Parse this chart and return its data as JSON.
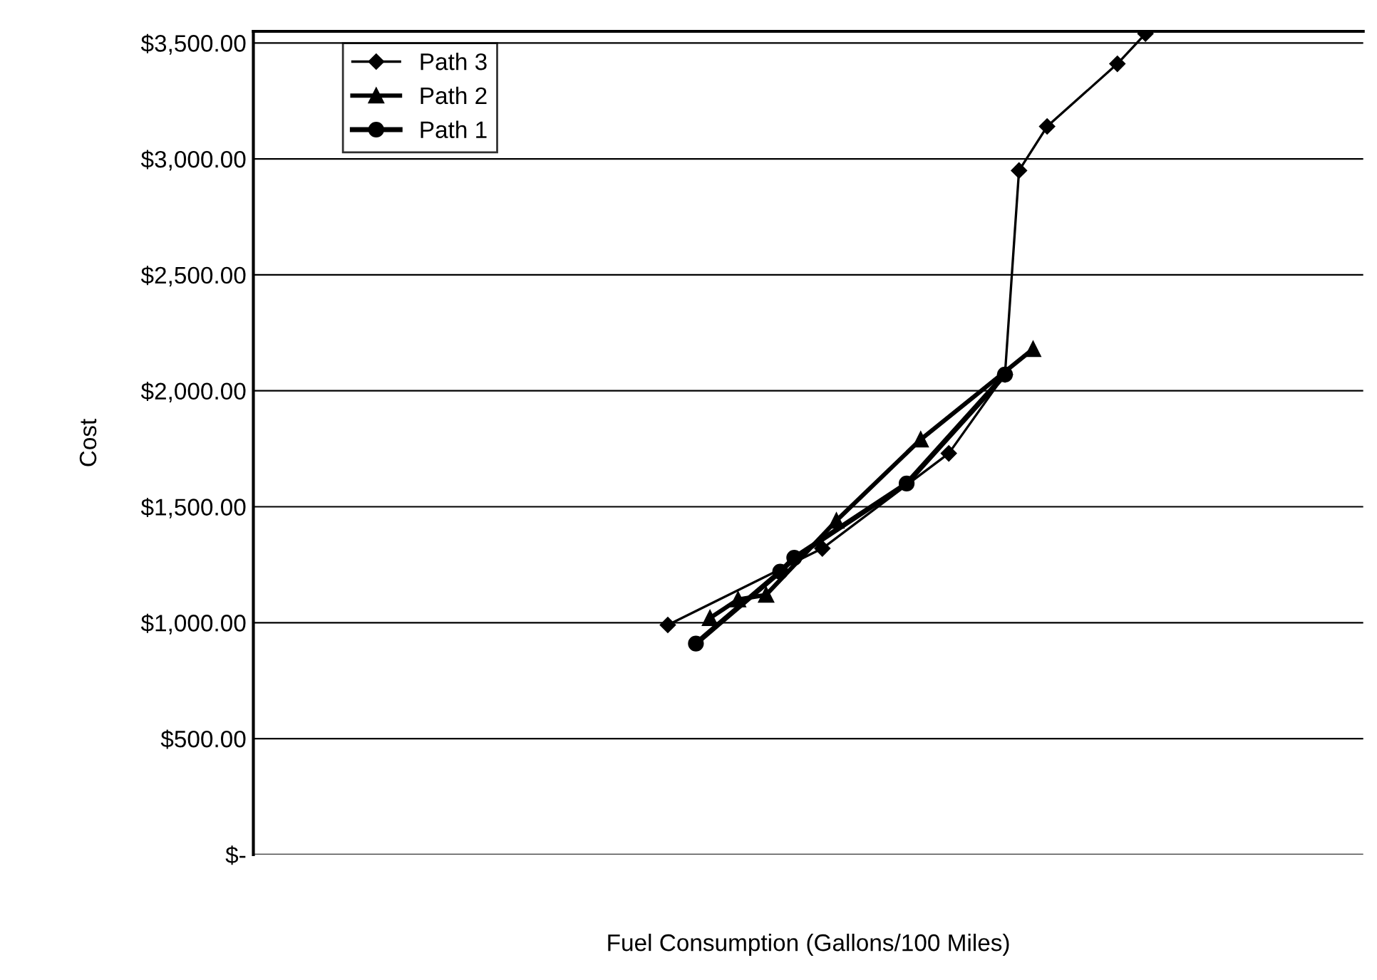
{
  "chart_data": {
    "type": "line",
    "xlabel": "Fuel Consumption (Gallons/100 Miles)",
    "ylabel": "Cost",
    "categories": [
      null,
      null,
      null,
      null,
      null,
      null,
      null,
      null,
      null,
      null,
      null,
      null,
      null,
      null,
      null,
      null,
      null,
      null,
      null,
      null,
      null,
      null,
      null,
      null,
      null,
      null,
      null,
      null,
      null,
      null,
      null,
      null,
      null,
      null,
      null,
      null,
      null,
      null,
      null,
      null,
      null,
      null,
      null,
      null,
      null,
      null,
      null,
      null,
      null,
      null,
      null,
      null,
      null,
      null,
      null,
      null,
      null,
      null,
      null,
      null,
      null,
      null,
      null,
      null,
      null,
      null,
      null,
      null,
      null,
      null,
      null,
      null,
      null,
      null,
      null,
      null,
      null,
      null,
      null
    ],
    "series": [
      {
        "name": "Path 3",
        "color": "#000000",
        "marker": "diamond",
        "values": [
          null,
          null,
          null,
          null,
          null,
          null,
          null,
          null,
          null,
          null,
          null,
          null,
          null,
          null,
          null,
          null,
          null,
          null,
          null,
          null,
          null,
          null,
          null,
          null,
          null,
          null,
          null,
          null,
          null,
          990,
          null,
          null,
          null,
          null,
          null,
          null,
          null,
          null,
          null,
          null,
          1320,
          null,
          null,
          null,
          null,
          null,
          null,
          null,
          null,
          1730,
          null,
          null,
          null,
          2070,
          2950,
          null,
          3140,
          null,
          null,
          null,
          null,
          3410,
          null,
          3540,
          null,
          null,
          null,
          null,
          null,
          null,
          null,
          null,
          null,
          null,
          null,
          null,
          null,
          null,
          null
        ]
      },
      {
        "name": "Path 2",
        "color": "#000000",
        "marker": "triangle",
        "values": [
          null,
          null,
          null,
          null,
          null,
          null,
          null,
          null,
          null,
          null,
          null,
          null,
          null,
          null,
          null,
          null,
          null,
          null,
          null,
          null,
          null,
          null,
          null,
          null,
          null,
          null,
          null,
          null,
          null,
          null,
          null,
          null,
          1020,
          null,
          1100,
          null,
          1120,
          null,
          null,
          null,
          null,
          1440,
          null,
          null,
          null,
          null,
          null,
          1790,
          null,
          null,
          null,
          null,
          null,
          null,
          null,
          2180,
          null,
          null,
          null,
          null,
          null,
          null,
          null,
          null,
          null,
          null,
          null,
          null,
          null,
          null,
          null,
          null,
          null,
          null,
          null,
          null,
          null,
          null,
          null
        ]
      },
      {
        "name": "Path 1",
        "color": "#000000",
        "marker": "circle",
        "values": [
          null,
          null,
          null,
          null,
          null,
          null,
          null,
          null,
          null,
          null,
          null,
          null,
          null,
          null,
          null,
          null,
          null,
          null,
          null,
          null,
          null,
          null,
          null,
          null,
          null,
          null,
          null,
          null,
          null,
          null,
          null,
          910,
          null,
          null,
          null,
          null,
          null,
          1220,
          1280,
          null,
          null,
          null,
          null,
          null,
          null,
          null,
          1600,
          null,
          null,
          null,
          null,
          null,
          null,
          2070,
          null,
          null,
          null,
          null,
          null,
          null,
          null,
          null,
          null,
          null,
          null,
          null,
          null,
          null,
          null,
          null,
          null,
          null,
          null,
          null,
          null,
          null,
          null,
          null,
          null
        ]
      }
    ],
    "ylim": [
      0,
      3550
    ],
    "yticks": [
      {
        "value": 0,
        "label": "$-"
      },
      {
        "value": 500,
        "label": "$500.00"
      },
      {
        "value": 1000,
        "label": "$1,000.00"
      },
      {
        "value": 1500,
        "label": "$1,500.00"
      },
      {
        "value": 2000,
        "label": "$2,000.00"
      },
      {
        "value": 2500,
        "label": "$2,500.00"
      },
      {
        "value": 3000,
        "label": "$3,000.00"
      },
      {
        "value": 3500,
        "label": "$3,500.00"
      }
    ],
    "grid": "y",
    "legend": "top left",
    "tick_labels": "y",
    "line_style": "solid"
  }
}
